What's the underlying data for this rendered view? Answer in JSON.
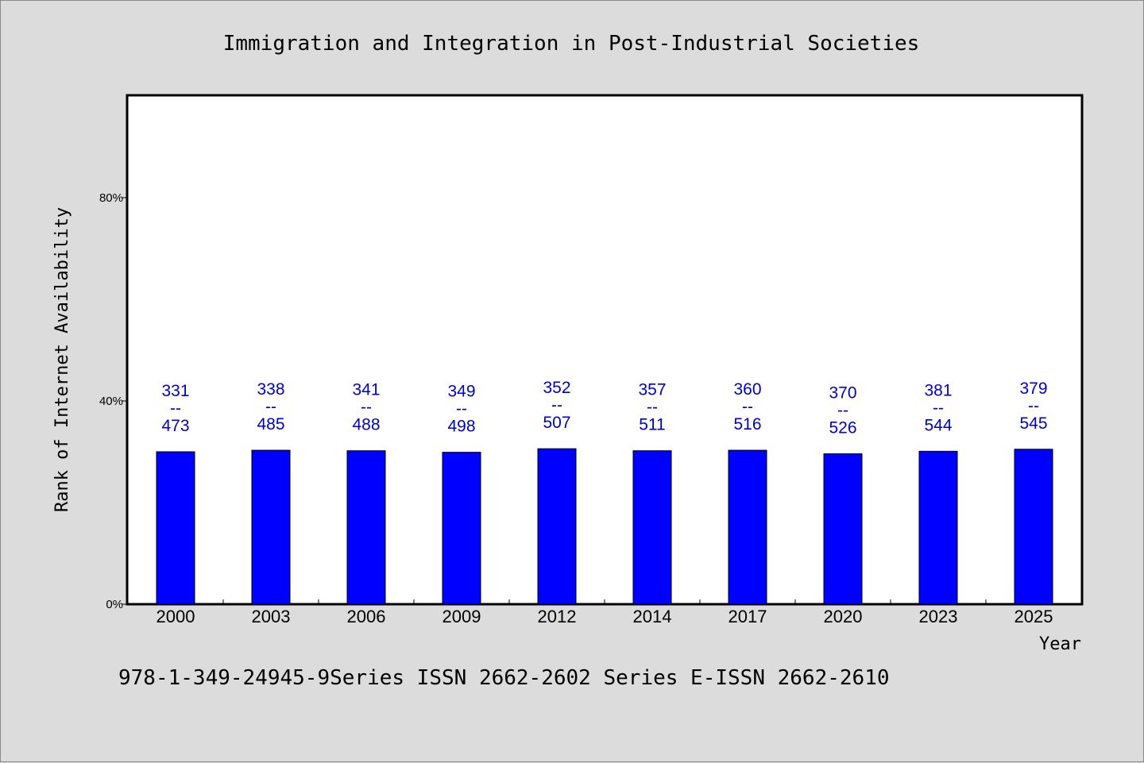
{
  "chart_data": {
    "type": "bar",
    "title": "Immigration and Integration in Post-Industrial Societies",
    "xlabel": "Year",
    "ylabel": "Rank of Internet Availability",
    "categories": [
      "2000",
      "2003",
      "2006",
      "2009",
      "2012",
      "2014",
      "2017",
      "2020",
      "2023",
      "2025"
    ],
    "values": [
      0.3,
      0.303,
      0.302,
      0.299,
      0.306,
      0.302,
      0.303,
      0.296,
      0.301,
      0.305
    ],
    "data_labels": [
      {
        "top": "331",
        "sep": "--",
        "bottom": "473"
      },
      {
        "top": "338",
        "sep": "--",
        "bottom": "485"
      },
      {
        "top": "341",
        "sep": "--",
        "bottom": "488"
      },
      {
        "top": "349",
        "sep": "--",
        "bottom": "498"
      },
      {
        "top": "352",
        "sep": "--",
        "bottom": "507"
      },
      {
        "top": "357",
        "sep": "--",
        "bottom": "511"
      },
      {
        "top": "360",
        "sep": "--",
        "bottom": "516"
      },
      {
        "top": "370",
        "sep": "--",
        "bottom": "526"
      },
      {
        "top": "381",
        "sep": "--",
        "bottom": "544"
      },
      {
        "top": "379",
        "sep": "--",
        "bottom": "545"
      }
    ],
    "ylim": [
      0,
      1
    ],
    "yticks": [
      0,
      0.4,
      0.8
    ],
    "ytick_labels": [
      "0%",
      "40%",
      "80%"
    ],
    "grid": false,
    "bar_color": "#0000ff",
    "label_color": "#0000cc"
  },
  "footer": {
    "text": "978-1-349-24945-9Series ISSN 2662-2602 Series E-ISSN 2662-2610"
  }
}
